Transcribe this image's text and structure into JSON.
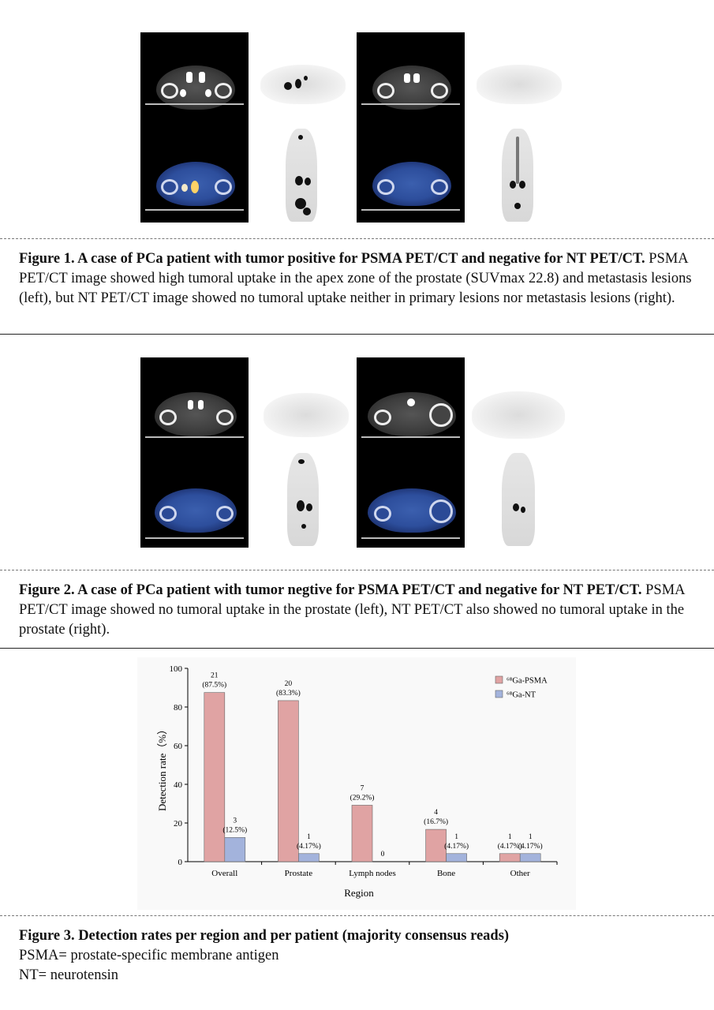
{
  "figure1": {
    "title": "Figure 1. A  case of PCa patient with tumor positive for PSMA PET/CT and negative for NT PET/CT.",
    "text": " PSMA PET/CT image showed high tumoral uptake in the apex zone of the prostate (SUVmax 22.8) and metastasis lesions (left), but NT PET/CT image showed no tumoral uptake neither in primary lesions nor metastasis lesions (right)."
  },
  "figure2": {
    "title_a": "Figure 2",
    "title_b": ". A case of PCa patient with tumor negtive for PSMA PET/CT and negative for NT PET/CT.",
    "text": " PSMA PET/CT image showed no tumoral uptake in the prostate (left), NT PET/CT also showed no tumoral uptake in the prostate (right)."
  },
  "figure3": {
    "title": "Figure 3. Detection rates per region and per patient (majority consensus reads)",
    "line1": "PSMA= prostate-specific membrane antigen",
    "line2": "NT= neurotensin"
  },
  "chart_data": {
    "type": "bar",
    "xlabel": "Region",
    "ylabel": "Detection rate（%）",
    "ylim": [
      0,
      100
    ],
    "yticks": [
      "0",
      "20",
      "40",
      "60",
      "80",
      "100"
    ],
    "categories": [
      "Overall",
      "Prostate",
      "Lymph nodes",
      "Bone",
      "Other"
    ],
    "legend_position": "top-right",
    "grid": false,
    "series": [
      {
        "name": "⁶⁸Ga-PSMA",
        "color": "#e0a3a3",
        "values": [
          87.5,
          83.3,
          29.2,
          16.7,
          4.17
        ],
        "labels_count": [
          "21",
          "20",
          "7",
          "4",
          "1"
        ],
        "labels_pct": [
          "(87.5%)",
          "(83.3%)",
          "(29.2%)",
          "(16.7%)",
          "(4.17%)"
        ]
      },
      {
        "name": "⁶⁸Ga-NT",
        "color": "#a3b3dc",
        "values": [
          12.5,
          4.17,
          0,
          4.17,
          4.17
        ],
        "labels_count": [
          "3",
          "1",
          "0",
          "1",
          "1"
        ],
        "labels_pct": [
          "(12.5%)",
          "(4.17%)",
          "",
          "(4.17%)",
          "(4.17%)"
        ]
      }
    ]
  }
}
